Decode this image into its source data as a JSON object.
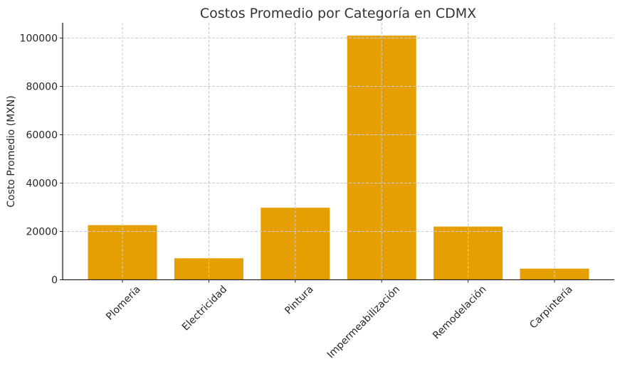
{
  "chart_data": {
    "type": "bar",
    "title": "Costos Promedio por Categoría en CDMX",
    "xlabel": "",
    "ylabel": "Costo Promedio (MXN)",
    "categories": [
      "Plomería",
      "Electricidad",
      "Pintura",
      "Impermeabilización",
      "Remodelación",
      "Carpintería"
    ],
    "values": [
      22600,
      8900,
      29800,
      101000,
      22000,
      4600
    ],
    "ylim": [
      0,
      106000
    ],
    "yticks": [
      0,
      20000,
      40000,
      60000,
      80000,
      100000
    ],
    "ytick_labels": [
      "0",
      "20000",
      "40000",
      "60000",
      "80000",
      "100000"
    ],
    "grid": true,
    "bar_color": "#E69F00",
    "legend": null,
    "xtick_rotation": -45
  }
}
